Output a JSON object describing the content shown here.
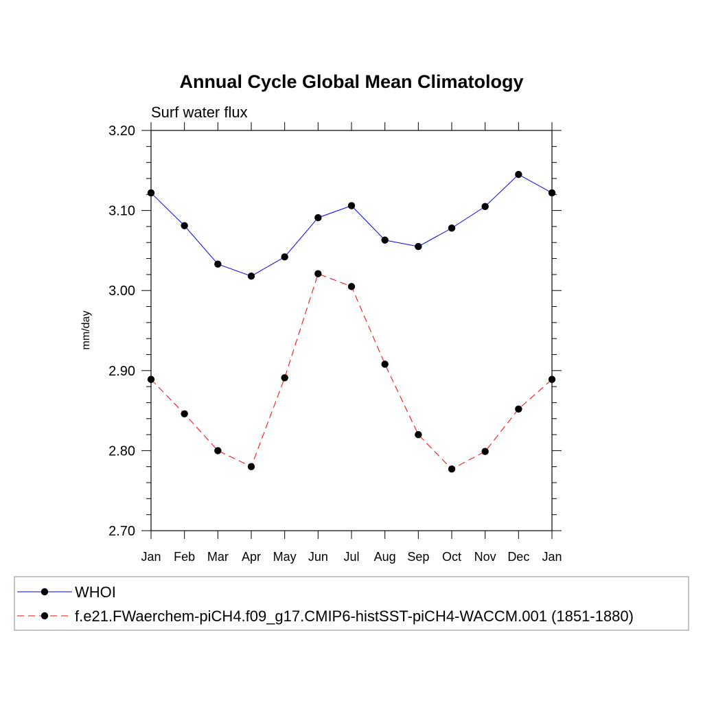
{
  "chart_data": {
    "type": "line",
    "title": "Annual Cycle Global Mean Climatology",
    "subtitle": "Surf water flux",
    "xlabel": "",
    "ylabel": "mm/day",
    "categories": [
      "Jan",
      "Feb",
      "Mar",
      "Apr",
      "May",
      "Jun",
      "Jul",
      "Aug",
      "Sep",
      "Oct",
      "Nov",
      "Dec",
      "Jan"
    ],
    "ylim": [
      2.7,
      3.2
    ],
    "yticks": [
      "2.70",
      "2.80",
      "2.90",
      "3.00",
      "3.10",
      "3.20"
    ],
    "series": [
      {
        "name": "WHOI",
        "color": "#0000ff",
        "dash": "solid",
        "values": [
          3.122,
          3.081,
          3.033,
          3.018,
          3.042,
          3.091,
          3.106,
          3.063,
          3.055,
          3.078,
          3.105,
          3.145,
          3.122
        ]
      },
      {
        "name": "f.e21.FWaerchem-piCH4.f09_g17.CMIP6-histSST-piCH4-WACCM.001 (1851-1880)",
        "color": "#ff0000",
        "dash": "dashed",
        "values": [
          2.889,
          2.846,
          2.8,
          2.78,
          2.891,
          3.021,
          3.005,
          2.908,
          2.82,
          2.777,
          2.799,
          2.852,
          2.889
        ]
      }
    ],
    "legend_position": "bottom",
    "grid": false
  }
}
